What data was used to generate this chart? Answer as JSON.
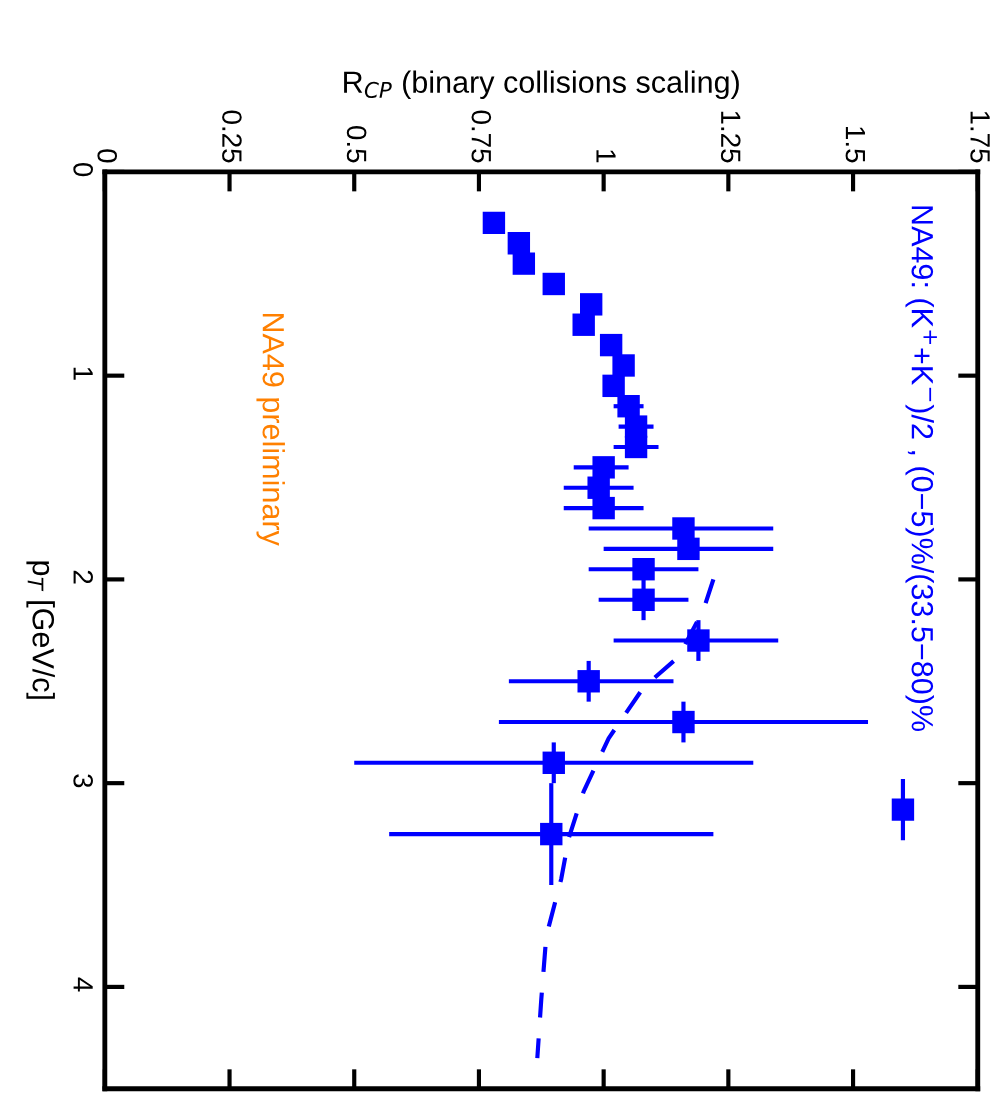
{
  "chart_data": {
    "type": "scatter",
    "xlabel": "R$_{CP}$ (binary collisions scaling)",
    "ylabel": "p$_{T}$ [GeV/c]",
    "xlim": [
      0,
      1.75
    ],
    "xticks": [
      0,
      0.25,
      0.5,
      0.75,
      1,
      1.25,
      1.5,
      1.75
    ],
    "ylim": [
      4.5,
      0
    ],
    "yticks": [
      0,
      1,
      2,
      3,
      4
    ],
    "grid": false,
    "legend": false,
    "annotations": [
      "NA49 preliminary"
    ],
    "series": [
      {
        "name": "NA49: (K$^{+}$+K$^{−}$)/2 , (0−5)%/(33.5−80)%",
        "color": "#0000ff",
        "marker": "square",
        "x": [
          0.78,
          0.83,
          0.84,
          0.9,
          0.975,
          0.96,
          1.015,
          1.04,
          1.02,
          1.05,
          1.065,
          1.065,
          1.0,
          0.99,
          1.0,
          1.16,
          1.17,
          1.08,
          1.08,
          1.19,
          0.97,
          1.16,
          0.9,
          0.895,
          1.6
        ],
        "values": [
          0.25,
          0.35,
          0.45,
          0.55,
          0.65,
          0.75,
          0.85,
          0.95,
          1.05,
          1.15,
          1.25,
          1.35,
          1.45,
          1.55,
          1.65,
          1.75,
          1.85,
          1.95,
          2.1,
          2.3,
          2.5,
          2.7,
          2.9,
          3.25,
          3.13
        ],
        "xerrors": [
          null,
          null,
          null,
          null,
          null,
          null,
          null,
          null,
          null,
          [
            1.02,
            1.08
          ],
          [
            1.03,
            1.1
          ],
          [
            1.02,
            1.11
          ],
          [
            0.94,
            1.05
          ],
          [
            0.92,
            1.06
          ],
          [
            0.92,
            1.08
          ],
          [
            0.97,
            1.34
          ],
          [
            1.0,
            1.34
          ],
          [
            0.97,
            1.19
          ],
          [
            0.99,
            1.17
          ],
          [
            1.02,
            1.35
          ],
          [
            0.81,
            1.14
          ],
          [
            0.79,
            1.53
          ],
          [
            0.5,
            1.3
          ],
          [
            0.57,
            1.22
          ],
          null
        ],
        "errors": [
          null,
          null,
          null,
          null,
          null,
          null,
          null,
          null,
          null,
          null,
          null,
          null,
          null,
          null,
          null,
          null,
          null,
          null,
          0.1,
          0.1,
          0.1,
          0.1,
          0.1,
          0.25,
          0.15
        ]
      },
      {
        "type": "line",
        "color": "#0000ff",
        "line_style": "dashed",
        "marker": "none",
        "x": [
          1.22,
          1.2,
          1.15,
          1.08,
          1.01,
          0.96,
          0.93,
          0.915,
          0.885,
          0.875,
          0.867
        ],
        "values": [
          2.0,
          2.15,
          2.38,
          2.53,
          2.78,
          3.04,
          3.27,
          3.47,
          3.75,
          4.06,
          4.35
        ]
      }
    ]
  }
}
